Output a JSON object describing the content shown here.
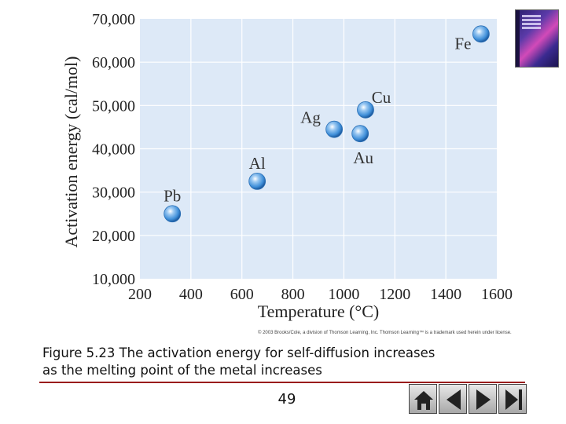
{
  "chart_data": {
    "type": "scatter",
    "xlabel": "Temperature (°C)",
    "ylabel": "Activation energy (cal/mol)",
    "xlim": [
      200,
      1600
    ],
    "ylim": [
      10000,
      70000
    ],
    "x_ticks": [
      "200",
      "400",
      "600",
      "800",
      "1000",
      "1200",
      "1400",
      "1600"
    ],
    "y_ticks": [
      "10,000",
      "20,000",
      "30,000",
      "40,000",
      "50,000",
      "60,000",
      "70,000"
    ],
    "grid": true,
    "points": [
      {
        "label": "Pb",
        "x": 327,
        "y": 25000
      },
      {
        "label": "Al",
        "x": 660,
        "y": 32500
      },
      {
        "label": "Ag",
        "x": 962,
        "y": 44500
      },
      {
        "label": "Au",
        "x": 1064,
        "y": 43500
      },
      {
        "label": "Cu",
        "x": 1085,
        "y": 49000
      },
      {
        "label": "Fe",
        "x": 1538,
        "y": 66500
      }
    ]
  },
  "copyright": "© 2003 Brooks/Cole, a division of Thomson Learning, Inc. Thomson Learning™ is a trademark used herein under license.",
  "caption_line1": "Figure 5.23 The activation energy for self-diffusion increases",
  "caption_line2": "as the melting point of the metal increases",
  "page_number": "49",
  "colors": {
    "plot_bg": "#dde9f7",
    "grid": "#ffffff",
    "marker": "#3f8fd9",
    "rule": "#9a1c1c"
  }
}
